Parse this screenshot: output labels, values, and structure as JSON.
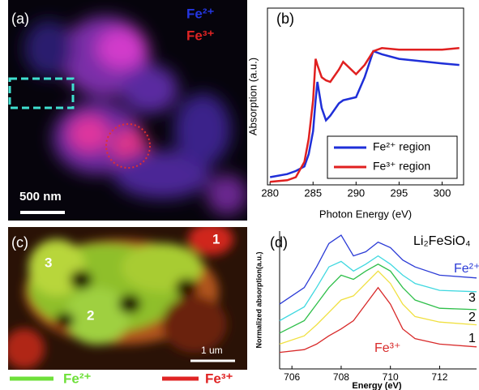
{
  "panels": {
    "a": {
      "label": "(a)",
      "legend": [
        "Fe²⁺",
        "Fe³⁺"
      ],
      "scale_bar": "500 nm"
    },
    "c": {
      "label": "(c)",
      "spots": [
        "1",
        "2",
        "3"
      ],
      "scale_bar": "1 um",
      "legend": [
        "Fe²⁺",
        "Fe³⁺"
      ]
    }
  },
  "chart_data": [
    {
      "type": "line",
      "panel_label": "(b)",
      "xlabel": "Photon Energy (eV)",
      "ylabel": "Absorption (a.u.)",
      "x": [
        280,
        282,
        283,
        284,
        284.5,
        285,
        285.3,
        285.5,
        286,
        286.5,
        287,
        288,
        288.5,
        290,
        291,
        292,
        293,
        295,
        300,
        302
      ],
      "series": [
        {
          "name": "Fe²⁺ region",
          "color": "#1f2fd8",
          "values": [
            0.05,
            0.07,
            0.09,
            0.12,
            0.2,
            0.35,
            0.55,
            0.67,
            0.5,
            0.42,
            0.45,
            0.53,
            0.55,
            0.57,
            0.7,
            0.87,
            0.85,
            0.82,
            0.79,
            0.78
          ]
        },
        {
          "name": "Fe³⁺ region",
          "color": "#e02020",
          "values": [
            0.02,
            0.03,
            0.05,
            0.15,
            0.3,
            0.55,
            0.82,
            0.78,
            0.7,
            0.68,
            0.67,
            0.75,
            0.8,
            0.72,
            0.78,
            0.87,
            0.89,
            0.88,
            0.88,
            0.89
          ]
        }
      ],
      "xlim": [
        279.7,
        302.5
      ],
      "xticks": [
        280,
        285,
        290,
        295,
        300
      ],
      "ylim": [
        0,
        1.15
      ],
      "legend": "lower right"
    },
    {
      "type": "line",
      "panel_label": "(d)",
      "title": "Li₂FeSiO₄",
      "xlabel": "Energy (eV)",
      "ylabel": "Normalized absorption(a.u.)",
      "x": [
        705.5,
        706.5,
        707,
        707.5,
        708,
        708.5,
        709,
        709.5,
        710,
        710.5,
        711,
        712,
        713.5
      ],
      "series": [
        {
          "name": "Fe²⁺",
          "color": "#2b3bd6",
          "values": [
            0.47,
            0.59,
            0.74,
            0.91,
            0.97,
            0.82,
            0.85,
            0.92,
            0.88,
            0.79,
            0.74,
            0.68,
            0.66
          ]
        },
        {
          "name": "3",
          "color": "#3fd8e0",
          "values": [
            0.35,
            0.45,
            0.59,
            0.74,
            0.78,
            0.71,
            0.76,
            0.82,
            0.76,
            0.68,
            0.62,
            0.57,
            0.56
          ]
        },
        {
          "name": "2",
          "color": "#2fbf4a",
          "values": [
            0.26,
            0.35,
            0.47,
            0.59,
            0.68,
            0.65,
            0.71,
            0.76,
            0.71,
            0.59,
            0.5,
            0.44,
            0.43
          ]
        },
        {
          "name": "1",
          "color": "#f0e040",
          "values": [
            0.18,
            0.24,
            0.32,
            0.41,
            0.5,
            0.53,
            0.62,
            0.71,
            0.62,
            0.47,
            0.38,
            0.34,
            0.32
          ]
        },
        {
          "name": "Fe³⁺",
          "color": "#d82a2a",
          "values": [
            0.12,
            0.14,
            0.18,
            0.24,
            0.29,
            0.35,
            0.47,
            0.59,
            0.47,
            0.29,
            0.22,
            0.18,
            0.16
          ]
        }
      ],
      "xlim": [
        705.5,
        713.5
      ],
      "xticks": [
        706,
        708,
        710,
        712
      ],
      "ylim": [
        0,
        1
      ]
    }
  ]
}
